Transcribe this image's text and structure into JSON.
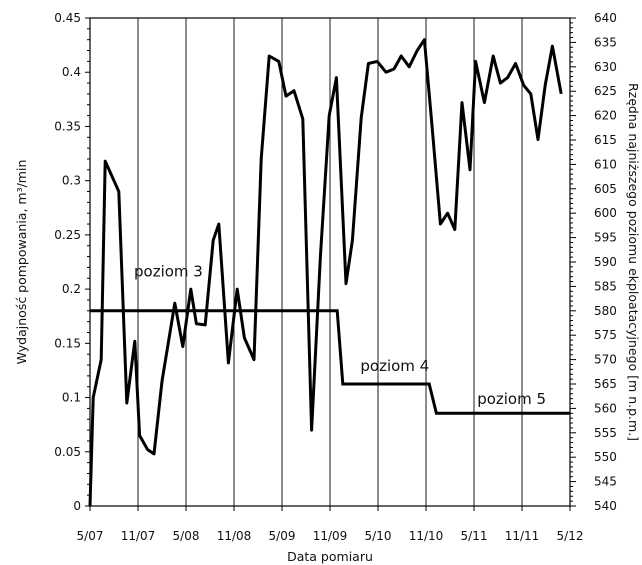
{
  "chart_data": {
    "type": "line",
    "xlabel": "Data pomiaru",
    "ylabel": "Wydajność pompowania, m³/min",
    "ylabel_right": "Rzędna najniższego poziomu ekploatacyjnego [m n.p.m.]",
    "x_ticks": [
      "5/07",
      "11/07",
      "5/08",
      "11/08",
      "5/09",
      "11/09",
      "5/10",
      "11/10",
      "5/11",
      "11/11",
      "5/12"
    ],
    "x_range_months": [
      0,
      60
    ],
    "ylim": [
      0,
      0.45
    ],
    "y_ticks": [
      0,
      0.05,
      0.1,
      0.15,
      0.2,
      0.25,
      0.3,
      0.35,
      0.4,
      0.45
    ],
    "ylim_right": [
      540,
      640
    ],
    "y_ticks_right": [
      540,
      545,
      550,
      555,
      560,
      565,
      570,
      575,
      580,
      585,
      590,
      595,
      600,
      605,
      610,
      615,
      620,
      625,
      630,
      635,
      640
    ],
    "grid": "vertical lines at x ticks",
    "series": [
      {
        "axis": "left",
        "points": [
          [
            0,
            0.0
          ],
          [
            0.4,
            0.1
          ],
          [
            1.4,
            0.135
          ],
          [
            1.9,
            0.318
          ],
          [
            3.6,
            0.29
          ],
          [
            4.6,
            0.095
          ],
          [
            5.6,
            0.152
          ],
          [
            6.2,
            0.065
          ],
          [
            7.2,
            0.052
          ],
          [
            8.0,
            0.048
          ],
          [
            9.0,
            0.115
          ],
          [
            10.6,
            0.187
          ],
          [
            11.6,
            0.147
          ],
          [
            12.6,
            0.2
          ],
          [
            13.3,
            0.168
          ],
          [
            14.4,
            0.167
          ],
          [
            15.4,
            0.245
          ],
          [
            16.1,
            0.26
          ],
          [
            17.3,
            0.132
          ],
          [
            18.4,
            0.2
          ],
          [
            19.3,
            0.155
          ],
          [
            20.5,
            0.135
          ],
          [
            21.4,
            0.32
          ],
          [
            22.4,
            0.415
          ],
          [
            23.6,
            0.41
          ],
          [
            24.5,
            0.378
          ],
          [
            25.5,
            0.383
          ],
          [
            26.6,
            0.357
          ],
          [
            27.7,
            0.07
          ],
          [
            28.8,
            0.23
          ],
          [
            29.9,
            0.36
          ],
          [
            30.8,
            0.395
          ],
          [
            32.0,
            0.205
          ],
          [
            32.8,
            0.245
          ],
          [
            33.9,
            0.358
          ],
          [
            34.8,
            0.408
          ],
          [
            35.9,
            0.41
          ],
          [
            37.0,
            0.4
          ],
          [
            38.0,
            0.403
          ],
          [
            38.9,
            0.415
          ],
          [
            39.9,
            0.405
          ],
          [
            40.9,
            0.42
          ],
          [
            41.8,
            0.43
          ],
          [
            42.7,
            0.355
          ],
          [
            43.8,
            0.26
          ],
          [
            44.7,
            0.27
          ],
          [
            45.6,
            0.255
          ],
          [
            46.5,
            0.372
          ],
          [
            47.5,
            0.31
          ],
          [
            48.2,
            0.41
          ],
          [
            49.3,
            0.372
          ],
          [
            50.4,
            0.415
          ],
          [
            51.3,
            0.39
          ],
          [
            52.2,
            0.395
          ],
          [
            53.2,
            0.408
          ],
          [
            54.2,
            0.388
          ],
          [
            55.1,
            0.38
          ],
          [
            56.0,
            0.338
          ],
          [
            56.9,
            0.388
          ],
          [
            57.8,
            0.424
          ],
          [
            58.9,
            0.38
          ]
        ]
      },
      {
        "axis": "right",
        "points": [
          [
            0,
            580
          ],
          [
            30.9,
            580
          ],
          [
            31.6,
            565
          ],
          [
            42.4,
            565
          ],
          [
            43.3,
            559
          ],
          [
            60,
            559
          ]
        ]
      }
    ],
    "annotations": [
      {
        "text": "poziom 3",
        "x": 5.5,
        "y": 587
      },
      {
        "text": "poziom 4",
        "x": 33.8,
        "y": 567.7
      },
      {
        "text": "poziom 5",
        "x": 48.4,
        "y": 560.9
      }
    ]
  }
}
